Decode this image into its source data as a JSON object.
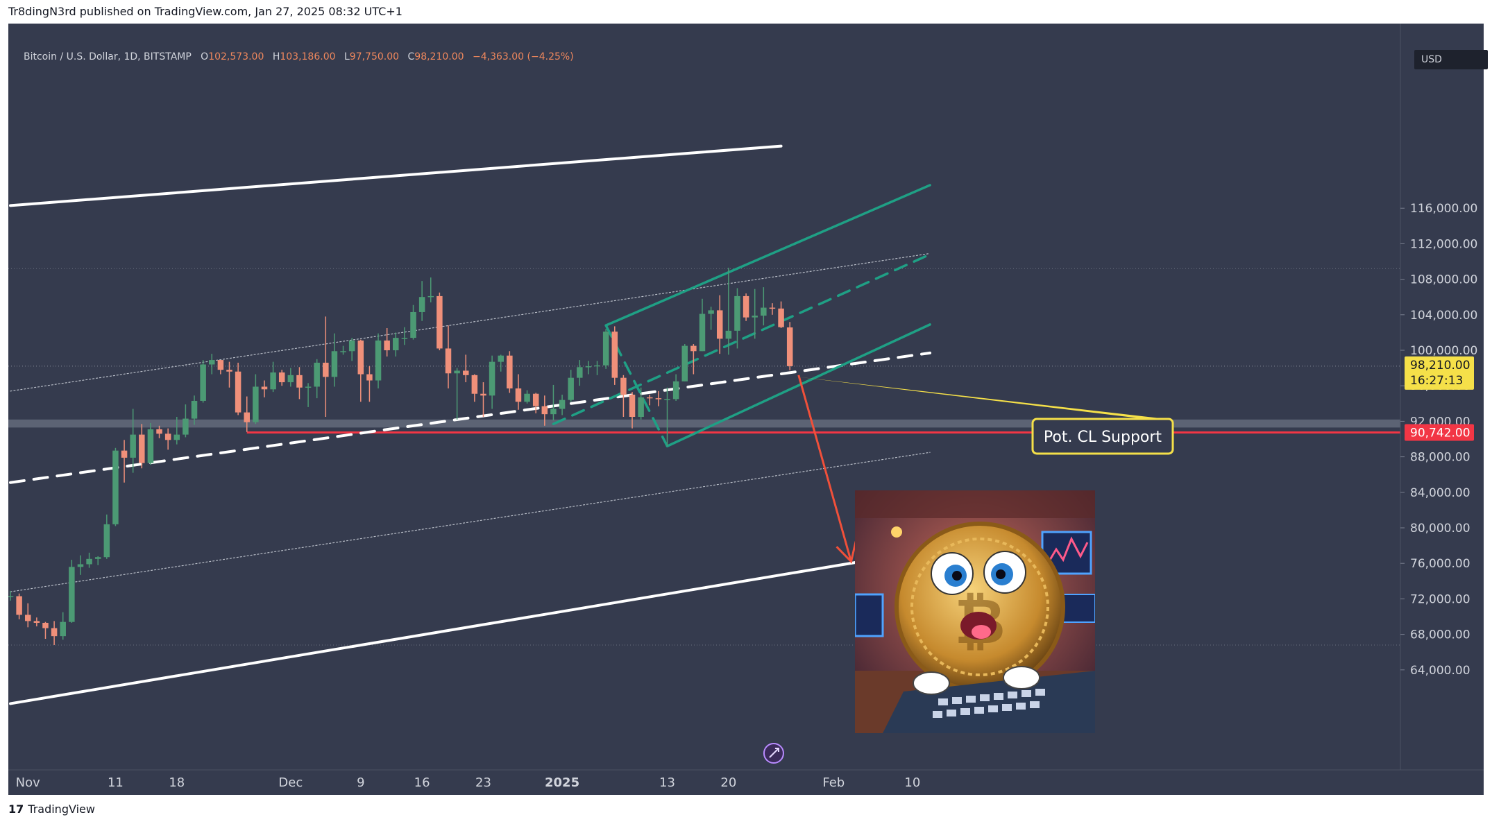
{
  "header": {
    "published_line": "Tr8dingN3rd published on TradingView.com, Jan 27, 2025 08:32 UTC+1"
  },
  "legend": {
    "symbol": "Bitcoin / U.S. Dollar, 1D, BITSTAMP",
    "open_label": "O",
    "open": "102,573.00",
    "high_label": "H",
    "high": "103,186.00",
    "low_label": "L",
    "low": "97,750.00",
    "close_label": "C",
    "close": "98,210.00",
    "change": "−4,363.00 (−4.25%)"
  },
  "currency_badge": "USD",
  "price_labels": {
    "last_price": "98,210.00",
    "countdown": "16:27:13",
    "support_level": "90,742.00"
  },
  "annotation": {
    "text": "Pot. CL Support"
  },
  "footer": {
    "brand": "TradingView",
    "logo_glyph": "17"
  },
  "colors": {
    "background": "#353b4e",
    "up": "#4c9a74",
    "down": "#f0907a",
    "channel_white": "#ffffff",
    "channel_green": "#1fa085",
    "support_red": "#f23645",
    "arrow": "#f0503a",
    "callout": "#f5e049",
    "axis_text": "#d1d4dc"
  },
  "icons": {
    "watermark": "rocket-badge-icon"
  },
  "chart_data": {
    "type": "candlestick",
    "title": "",
    "xlabel": "",
    "ylabel": "",
    "ylim": [
      60000,
      120000
    ],
    "x_ticks": [
      "Nov",
      "11",
      "18",
      "Dec",
      "9",
      "16",
      "23",
      "2025",
      "13",
      "20",
      "Feb",
      "10"
    ],
    "y_ticks": [
      "64,000.00",
      "68,000.00",
      "72,000.00",
      "76,000.00",
      "80,000.00",
      "84,000.00",
      "88,000.00",
      "92,000.00",
      "96,000.00",
      "100,000.00",
      "104,000.00",
      "108,000.00",
      "112,000.00",
      "116,000.00"
    ],
    "series": [
      {
        "columns": [
          "date",
          "open",
          "high",
          "low",
          "close"
        ],
        "candles": [
          [
            "2024-10-30",
            72300,
            72900,
            71800,
            72300
          ],
          [
            "2024-10-31",
            72300,
            72600,
            69700,
            70200
          ],
          [
            "2024-11-01",
            70200,
            71500,
            68800,
            69500
          ],
          [
            "2024-11-02",
            69500,
            69900,
            68900,
            69300
          ],
          [
            "2024-11-03",
            69300,
            69400,
            67500,
            68700
          ],
          [
            "2024-11-04",
            68700,
            69500,
            66800,
            67800
          ],
          [
            "2024-11-05",
            67800,
            70500,
            67400,
            69400
          ],
          [
            "2024-11-06",
            69400,
            76400,
            69300,
            75600
          ],
          [
            "2024-11-07",
            75600,
            76900,
            74700,
            75900
          ],
          [
            "2024-11-08",
            75900,
            77200,
            75500,
            76500
          ],
          [
            "2024-11-09",
            76500,
            76800,
            75800,
            76700
          ],
          [
            "2024-11-10",
            76700,
            81500,
            76500,
            80400
          ],
          [
            "2024-11-11",
            80400,
            89000,
            80200,
            88700
          ],
          [
            "2024-11-12",
            88700,
            89900,
            85100,
            87900
          ],
          [
            "2024-11-13",
            87900,
            93400,
            86200,
            90500
          ],
          [
            "2024-11-14",
            90500,
            91700,
            86700,
            87300
          ],
          [
            "2024-11-15",
            87300,
            91800,
            87100,
            91100
          ],
          [
            "2024-11-16",
            91100,
            91500,
            90100,
            90600
          ],
          [
            "2024-11-17",
            90600,
            91200,
            88800,
            89900
          ],
          [
            "2024-11-18",
            89900,
            92500,
            89400,
            90500
          ],
          [
            "2024-11-19",
            90500,
            93900,
            90200,
            92300
          ],
          [
            "2024-11-20",
            92300,
            94900,
            91600,
            94300
          ],
          [
            "2024-11-21",
            94300,
            98900,
            94100,
            98400
          ],
          [
            "2024-11-22",
            98400,
            99600,
            97300,
            98900
          ],
          [
            "2024-11-23",
            98900,
            98900,
            97300,
            97800
          ],
          [
            "2024-11-24",
            97800,
            98700,
            95800,
            97600
          ],
          [
            "2024-11-25",
            97600,
            98600,
            92700,
            93000
          ],
          [
            "2024-11-26",
            93000,
            94800,
            90800,
            91900
          ],
          [
            "2024-11-27",
            91900,
            97300,
            91700,
            95900
          ],
          [
            "2024-11-28",
            95900,
            96600,
            94700,
            95600
          ],
          [
            "2024-11-29",
            95600,
            98700,
            95300,
            97500
          ],
          [
            "2024-11-30",
            97500,
            97800,
            96000,
            96400
          ],
          [
            "2024-12-01",
            96400,
            98000,
            95900,
            97200
          ],
          [
            "2024-12-02",
            97200,
            98100,
            94500,
            95800
          ],
          [
            "2024-12-03",
            95800,
            96300,
            93600,
            95900
          ],
          [
            "2024-12-04",
            95900,
            99000,
            94600,
            98600
          ],
          [
            "2024-12-05",
            98600,
            103800,
            92500,
            97000
          ],
          [
            "2024-12-06",
            97000,
            101900,
            95900,
            99900
          ],
          [
            "2024-12-07",
            99900,
            100500,
            99500,
            99900
          ],
          [
            "2024-12-08",
            99900,
            101400,
            98800,
            101100
          ],
          [
            "2024-12-09",
            101100,
            101200,
            94200,
            97300
          ],
          [
            "2024-12-10",
            97300,
            98200,
            94200,
            96600
          ],
          [
            "2024-12-11",
            96600,
            101900,
            95700,
            101100
          ],
          [
            "2024-12-12",
            101100,
            102500,
            99300,
            100000
          ],
          [
            "2024-12-13",
            100000,
            102000,
            99300,
            101400
          ],
          [
            "2024-12-14",
            101400,
            102600,
            100600,
            101400
          ],
          [
            "2024-12-15",
            101400,
            105100,
            101200,
            104300
          ],
          [
            "2024-12-16",
            104300,
            107800,
            103300,
            106000
          ],
          [
            "2024-12-17",
            106000,
            108200,
            105400,
            106100
          ],
          [
            "2024-12-18",
            106100,
            106500,
            100000,
            100200
          ],
          [
            "2024-12-19",
            100200,
            102800,
            95700,
            97400
          ],
          [
            "2024-12-20",
            97400,
            98000,
            92200,
            97700
          ],
          [
            "2024-12-21",
            97700,
            99500,
            96400,
            97200
          ],
          [
            "2024-12-22",
            97200,
            97300,
            94200,
            95100
          ],
          [
            "2024-12-23",
            95100,
            96400,
            92500,
            94900
          ],
          [
            "2024-12-24",
            94900,
            99400,
            93400,
            98700
          ],
          [
            "2024-12-25",
            98700,
            99500,
            97600,
            99400
          ],
          [
            "2024-12-26",
            99400,
            99900,
            95200,
            95700
          ],
          [
            "2024-12-27",
            95700,
            97300,
            93300,
            94200
          ],
          [
            "2024-12-28",
            94200,
            95500,
            94000,
            95100
          ],
          [
            "2024-12-29",
            95100,
            95200,
            92900,
            93700
          ],
          [
            "2024-12-30",
            93700,
            94900,
            91500,
            92800
          ],
          [
            "2024-12-31",
            92800,
            96100,
            92100,
            93400
          ],
          [
            "2025-01-01",
            93400,
            95000,
            92700,
            94400
          ],
          [
            "2025-01-02",
            94400,
            97800,
            94200,
            96900
          ],
          [
            "2025-01-03",
            96900,
            98900,
            96000,
            98100
          ],
          [
            "2025-01-04",
            98100,
            98800,
            97300,
            98200
          ],
          [
            "2025-01-05",
            98200,
            98800,
            97200,
            98300
          ],
          [
            "2025-01-06",
            98300,
            102400,
            97900,
            102100
          ],
          [
            "2025-01-07",
            102100,
            102700,
            96100,
            96900
          ],
          [
            "2025-01-08",
            96900,
            97200,
            92500,
            95000
          ],
          [
            "2025-01-09",
            95000,
            95300,
            91200,
            92500
          ],
          [
            "2025-01-10",
            92500,
            95800,
            92200,
            94700
          ],
          [
            "2025-01-11",
            94700,
            95000,
            93800,
            94600
          ],
          [
            "2025-01-12",
            94600,
            95400,
            93700,
            94500
          ],
          [
            "2025-01-13",
            94500,
            95800,
            89200,
            94500
          ],
          [
            "2025-01-14",
            94500,
            97300,
            94300,
            96500
          ],
          [
            "2025-01-15",
            96500,
            100700,
            96500,
            100500
          ],
          [
            "2025-01-16",
            100500,
            100700,
            97300,
            99900
          ],
          [
            "2025-01-17",
            99900,
            105800,
            99900,
            104100
          ],
          [
            "2025-01-18",
            104100,
            104900,
            102300,
            104500
          ],
          [
            "2025-01-19",
            104500,
            106200,
            99600,
            101300
          ],
          [
            "2025-01-20",
            101300,
            109300,
            99500,
            102200
          ],
          [
            "2025-01-21",
            102200,
            107000,
            100200,
            106100
          ],
          [
            "2025-01-22",
            106100,
            106400,
            103300,
            103700
          ],
          [
            "2025-01-23",
            103700,
            106900,
            101300,
            103900
          ],
          [
            "2025-01-24",
            103900,
            107100,
            102800,
            104800
          ],
          [
            "2025-01-25",
            104800,
            105300,
            104000,
            104700
          ],
          [
            "2025-01-26",
            104700,
            105500,
            102500,
            102600
          ],
          [
            "2025-01-27",
            102573,
            103186,
            97750,
            98210
          ]
        ]
      }
    ],
    "last_price": 98210,
    "support_level": 90742,
    "support_zone": [
      91300,
      92200
    ],
    "legend_placement": "top-left",
    "grid": false,
    "overlays": {
      "outer_channel_upper": [
        [
          "2024-10-30",
          116300
        ],
        [
          "2025-01-26",
          123000
        ]
      ],
      "outer_channel_lower": [
        [
          "2024-10-30",
          60200
        ],
        [
          "2025-02-12",
          77500
        ]
      ],
      "dashed_trend": [
        [
          "2024-10-30",
          85100
        ],
        [
          "2025-02-12",
          99700
        ]
      ],
      "dotted_mid_upper": [
        [
          "2024-10-30",
          95400
        ],
        [
          "2025-02-12",
          110900
        ]
      ],
      "dotted_mid_lower": [
        [
          "2024-10-30",
          72800
        ],
        [
          "2025-02-12",
          88500
        ]
      ],
      "green_channel_upper": [
        [
          "2025-01-06",
          102800
        ],
        [
          "2025-02-12",
          118600
        ]
      ],
      "green_channel_lower": [
        [
          "2025-01-13",
          89200
        ],
        [
          "2025-02-12",
          102900
        ]
      ],
      "green_channel_mid": [
        [
          "2024-12-31",
          91700
        ],
        [
          "2025-02-12",
          110800
        ]
      ],
      "green_channel_left": [
        [
          "2025-01-06",
          102800
        ],
        [
          "2025-01-13",
          89200
        ]
      ],
      "projection_arrow": [
        [
          "2025-01-28",
          97200
        ],
        [
          "2025-02-03",
          76200
        ]
      ]
    }
  }
}
